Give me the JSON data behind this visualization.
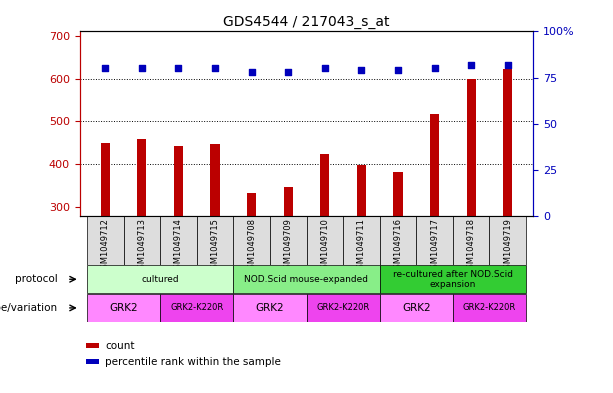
{
  "title": "GDS4544 / 217043_s_at",
  "samples": [
    "GSM1049712",
    "GSM1049713",
    "GSM1049714",
    "GSM1049715",
    "GSM1049708",
    "GSM1049709",
    "GSM1049710",
    "GSM1049711",
    "GSM1049716",
    "GSM1049717",
    "GSM1049718",
    "GSM1049719"
  ],
  "counts": [
    450,
    458,
    442,
    448,
    333,
    348,
    425,
    398,
    383,
    517,
    600,
    622
  ],
  "percentile_ranks": [
    80,
    80,
    80,
    80,
    78,
    78,
    80,
    79,
    79,
    80,
    82,
    82
  ],
  "ylim_left": [
    280,
    710
  ],
  "ylim_right": [
    0,
    100
  ],
  "yticks_left": [
    300,
    400,
    500,
    600,
    700
  ],
  "yticks_right": [
    0,
    25,
    50,
    75,
    100
  ],
  "bar_color": "#bb0000",
  "dot_color": "#0000bb",
  "protocol_row": [
    {
      "label": "cultured",
      "start": 0,
      "end": 4,
      "color": "#ccffcc"
    },
    {
      "label": "NOD.Scid mouse-expanded",
      "start": 4,
      "end": 8,
      "color": "#88ee88"
    },
    {
      "label": "re-cultured after NOD.Scid\nexpansion",
      "start": 8,
      "end": 12,
      "color": "#33cc33"
    }
  ],
  "genotype_row": [
    {
      "label": "GRK2",
      "start": 0,
      "end": 2,
      "color": "#ff88ff"
    },
    {
      "label": "GRK2-K220R",
      "start": 2,
      "end": 4,
      "color": "#ee44ee"
    },
    {
      "label": "GRK2",
      "start": 4,
      "end": 6,
      "color": "#ff88ff"
    },
    {
      "label": "GRK2-K220R",
      "start": 6,
      "end": 8,
      "color": "#ee44ee"
    },
    {
      "label": "GRK2",
      "start": 8,
      "end": 10,
      "color": "#ff88ff"
    },
    {
      "label": "GRK2-K220R",
      "start": 10,
      "end": 12,
      "color": "#ee44ee"
    }
  ],
  "protocol_label": "protocol",
  "genotype_label": "genotype/variation",
  "legend_count_label": "count",
  "legend_pct_label": "percentile rank within the sample",
  "sample_bg_color": "#dddddd",
  "grid_yticks": [
    400,
    500,
    600
  ]
}
